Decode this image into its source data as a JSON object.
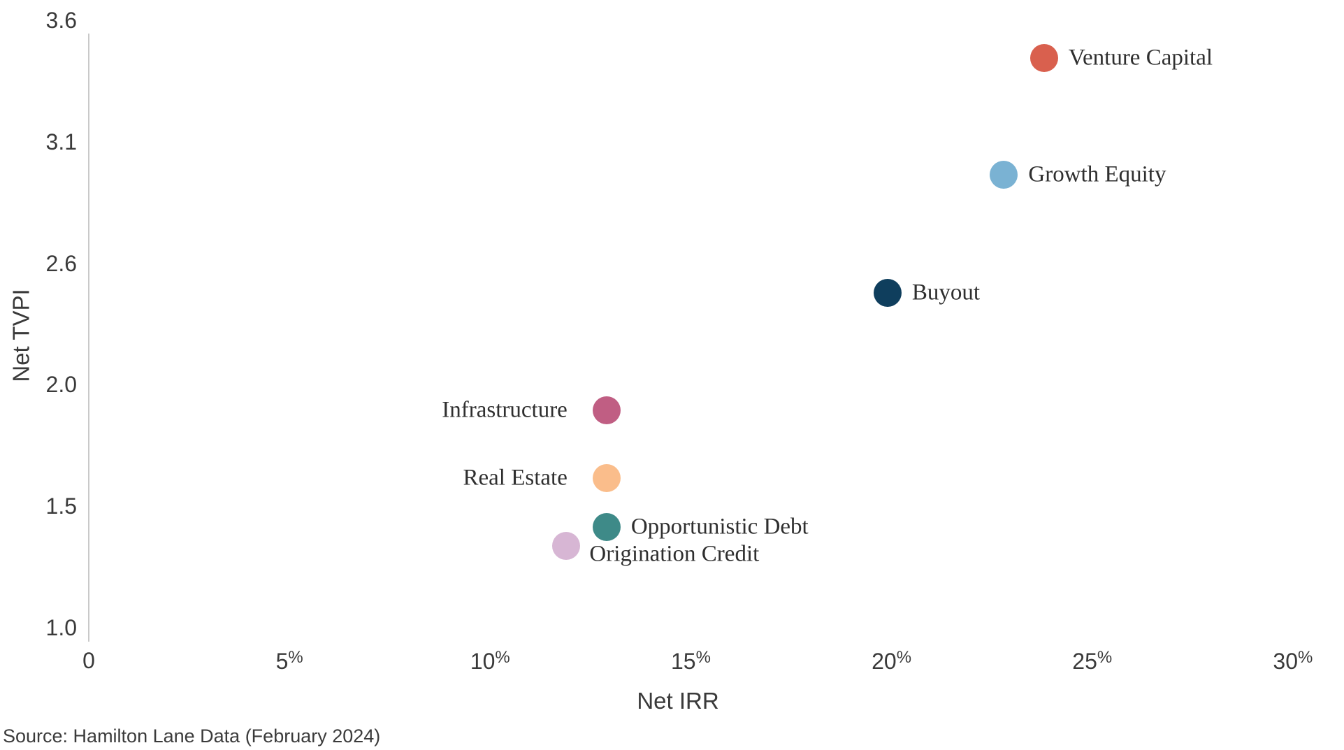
{
  "chart_data": {
    "type": "scatter",
    "xlabel": "Net IRR",
    "ylabel": "Net TVPI",
    "x_axis": {
      "min": 0,
      "max": 30,
      "ticks": [
        {
          "value": 0,
          "num": "0",
          "suffix": ""
        },
        {
          "value": 5,
          "num": "5",
          "suffix": "%"
        },
        {
          "value": 10,
          "num": "10",
          "suffix": "%"
        },
        {
          "value": 15,
          "num": "15",
          "suffix": "%"
        },
        {
          "value": 20,
          "num": "20",
          "suffix": "%"
        },
        {
          "value": 25,
          "num": "25",
          "suffix": "%"
        },
        {
          "value": 30,
          "num": "30",
          "suffix": "%"
        }
      ]
    },
    "y_axis": {
      "tick_labels": [
        "3.6",
        "3.1",
        "2.6",
        "2.0",
        "1.5",
        "1.0"
      ],
      "tick_values": [
        3.6,
        3.1,
        2.6,
        2.0,
        1.5,
        1.0
      ]
    },
    "grid": "off",
    "legend": "labels-next-to-points",
    "points": [
      {
        "name": "Venture Capital",
        "irr_pct": 23.8,
        "tvpi": 3.5,
        "color": "#d9604e",
        "label_side": "right"
      },
      {
        "name": "Growth Equity",
        "irr_pct": 22.8,
        "tvpi": 3.02,
        "color": "#7ab2d3",
        "label_side": "right"
      },
      {
        "name": "Buyout",
        "irr_pct": 19.9,
        "tvpi": 2.52,
        "color": "#0f3e5d",
        "label_side": "right"
      },
      {
        "name": "Infrastructure",
        "irr_pct": 12.9,
        "tvpi": 1.95,
        "color": "#c05e83",
        "label_side": "left"
      },
      {
        "name": "Real Estate",
        "irr_pct": 12.9,
        "tvpi": 1.67,
        "color": "#fabd8b",
        "label_side": "left"
      },
      {
        "name": "Opportunistic Debt",
        "irr_pct": 12.9,
        "tvpi": 1.47,
        "color": "#3e8a88",
        "label_side": "right"
      },
      {
        "name": "Origination Credit",
        "irr_pct": 11.9,
        "tvpi": 1.39,
        "color": "#d7b6d4",
        "label_side": "below-right"
      }
    ],
    "source": "Source: Hamilton Lane Data (February 2024)"
  }
}
